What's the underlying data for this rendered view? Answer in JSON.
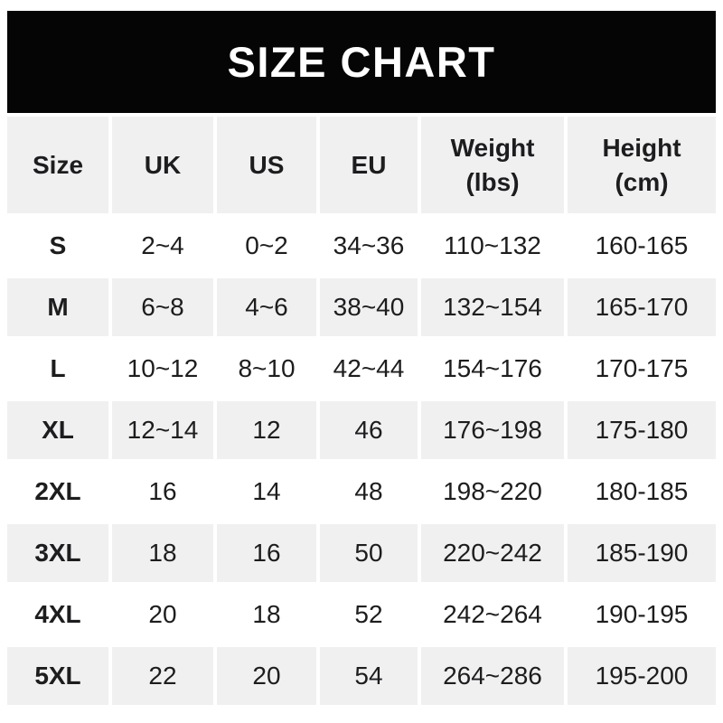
{
  "banner": {
    "title": "SIZE CHART"
  },
  "colors": {
    "banner_bg": "#050505",
    "banner_text": "#ffffff",
    "cell_gray": "#f0f0f1",
    "row_white": "#ffffff",
    "text": "#1d1d1f",
    "page_bg": "#ffffff"
  },
  "chart_data": {
    "type": "table",
    "title": "SIZE CHART",
    "columns": [
      "Size",
      "UK",
      "US",
      "EU",
      "Weight\n(lbs)",
      "Height\n(cm)"
    ],
    "rows": [
      [
        "S",
        "2~4",
        "0~2",
        "34~36",
        "110~132",
        "160-165"
      ],
      [
        "M",
        "6~8",
        "4~6",
        "38~40",
        "132~154",
        "165-170"
      ],
      [
        "L",
        "10~12",
        "8~10",
        "42~44",
        "154~176",
        "170-175"
      ],
      [
        "XL",
        "12~14",
        "12",
        "46",
        "176~198",
        "175-180"
      ],
      [
        "2XL",
        "16",
        "14",
        "48",
        "198~220",
        "180-185"
      ],
      [
        "3XL",
        "18",
        "16",
        "50",
        "220~242",
        "185-190"
      ],
      [
        "4XL",
        "20",
        "18",
        "52",
        "242~264",
        "190-195"
      ],
      [
        "5XL",
        "22",
        "20",
        "54",
        "264~286",
        "195-200"
      ]
    ],
    "layout": {
      "header_background": "gray",
      "body_row_alternation": "odd rows white, even rows gray",
      "range_separator_sizes": "~",
      "range_separator_height": "-"
    }
  }
}
